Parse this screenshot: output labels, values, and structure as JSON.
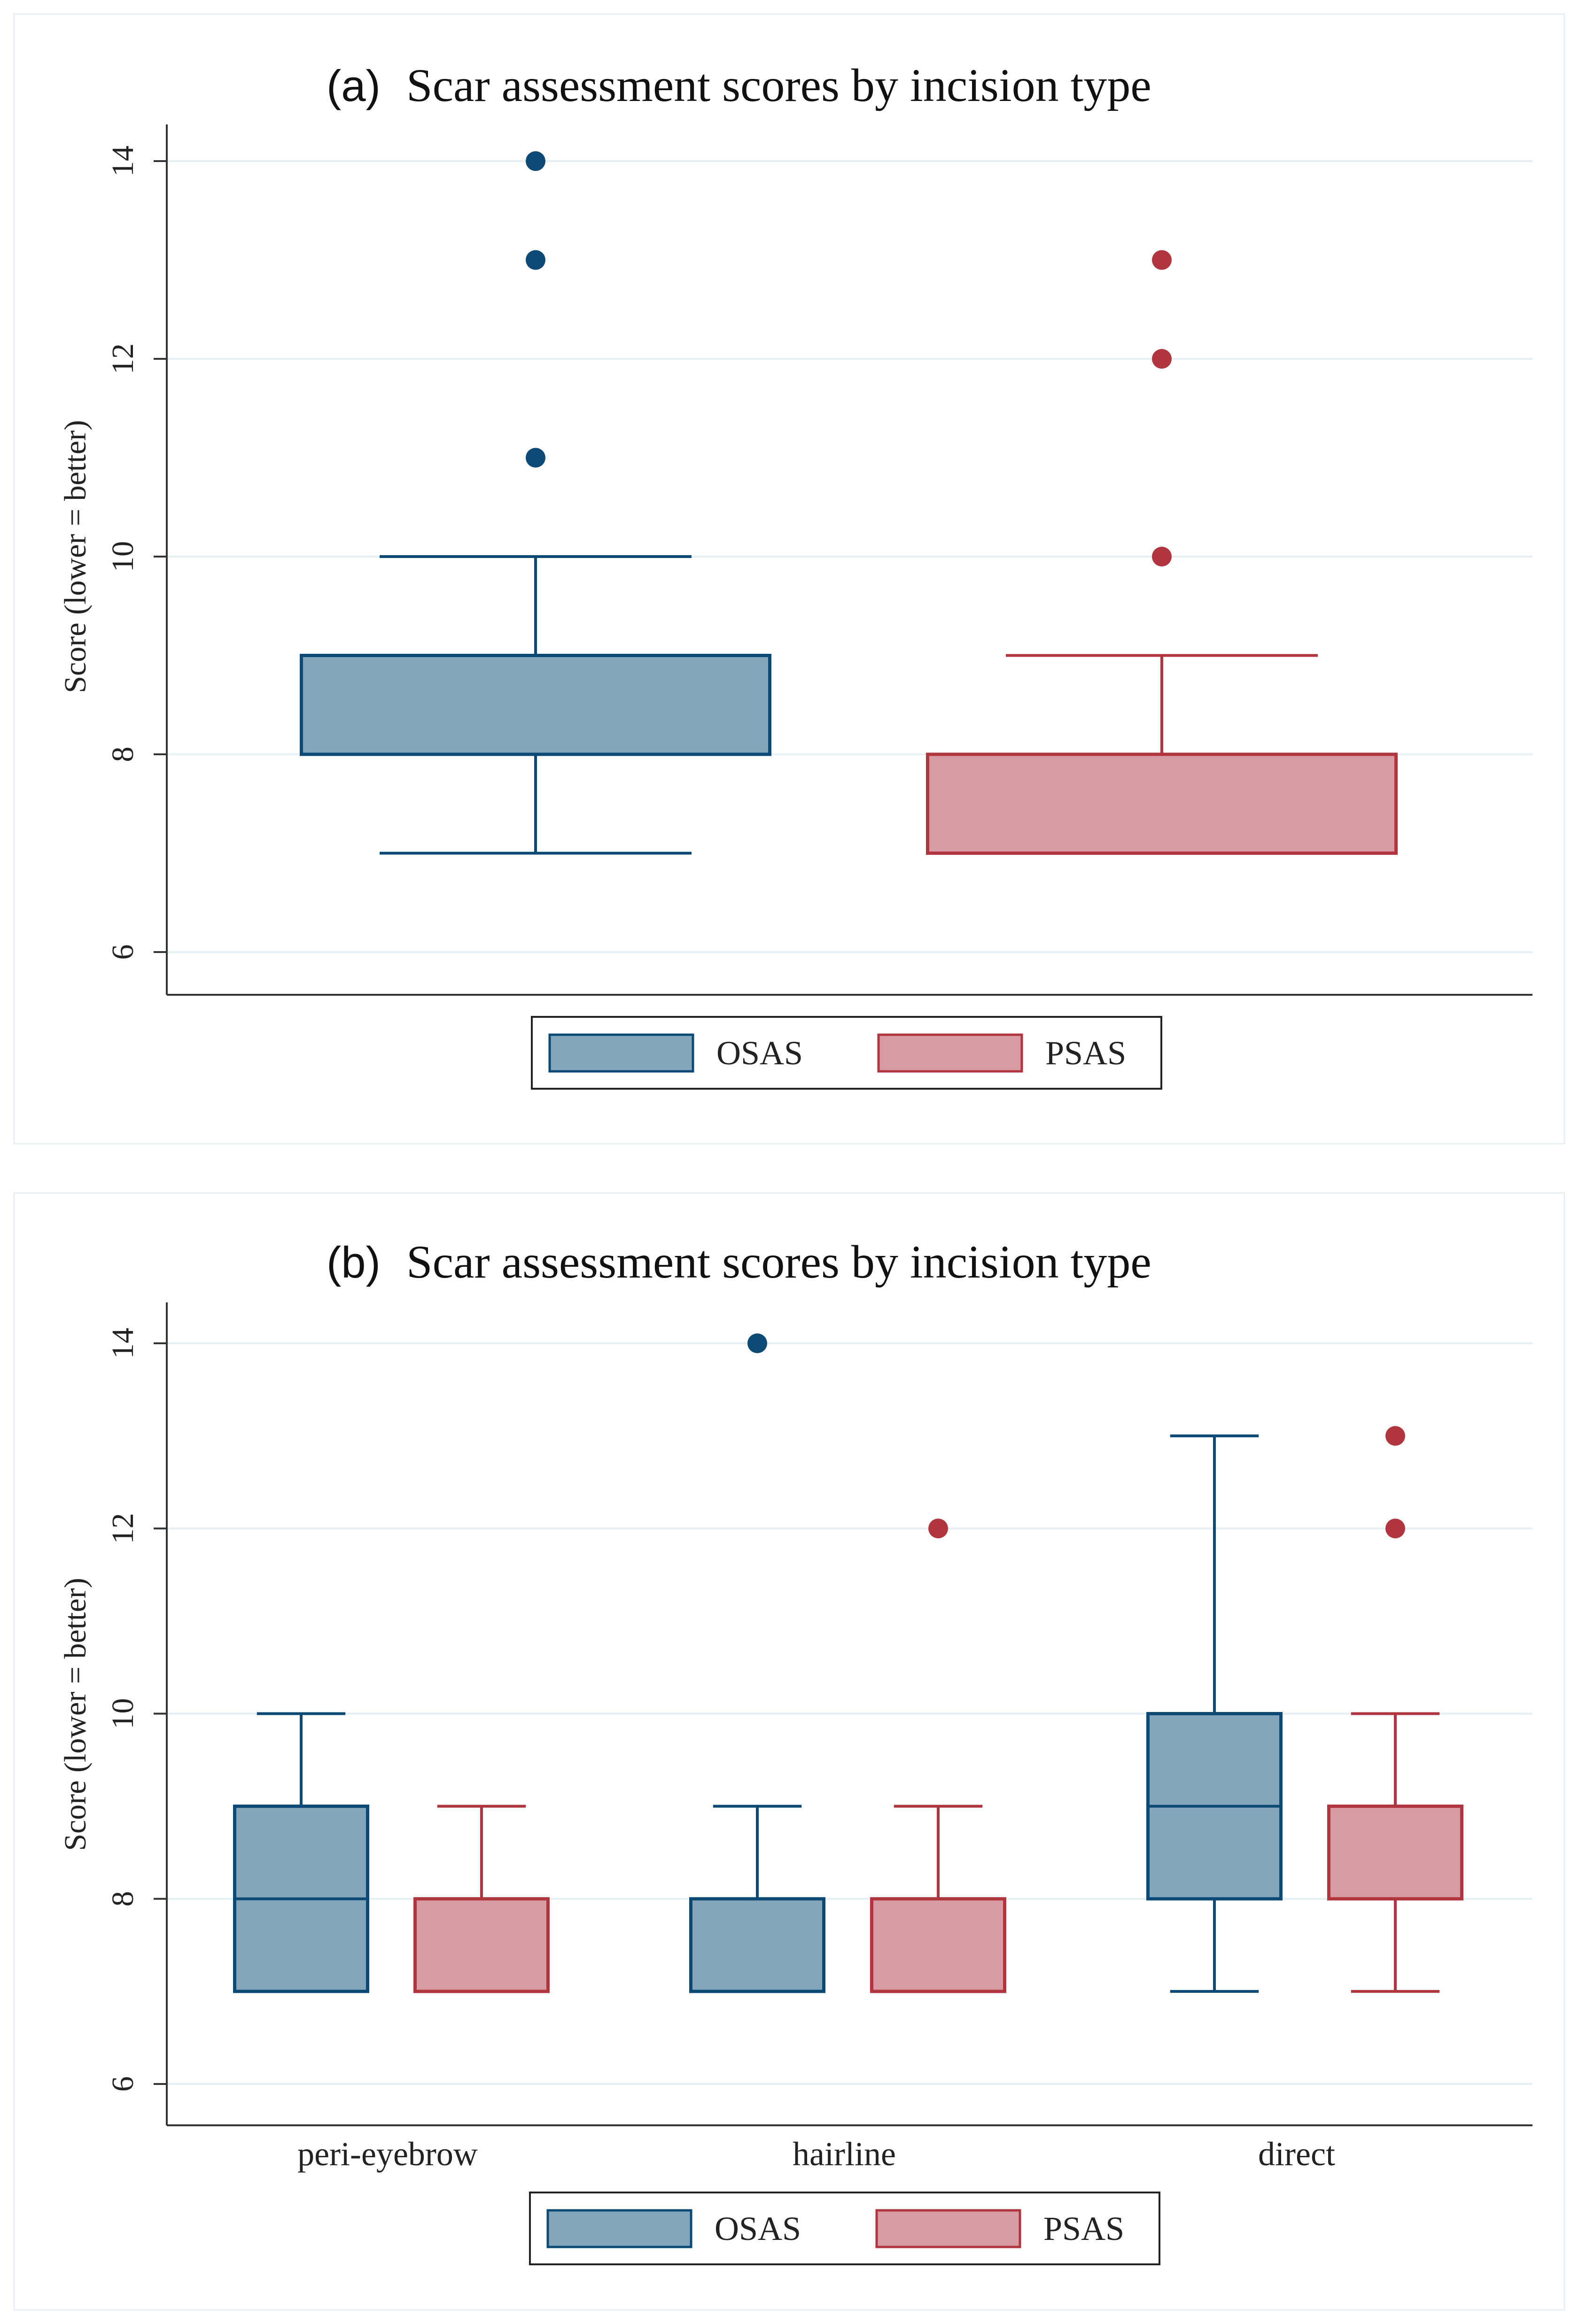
{
  "colors": {
    "osas_fill": "#84a6bb",
    "osas_stroke": "#0c4a75",
    "psas_fill": "#d89ba1",
    "psas_stroke": "#b0353f"
  },
  "chart_data": [
    {
      "type": "box",
      "panel_tag": "(a)",
      "title": "Scar assessment scores by incision type",
      "ylabel": "Score (lower = better)",
      "ylim": [
        6,
        14
      ],
      "yticks": [
        6,
        8,
        10,
        12,
        14
      ],
      "grid": true,
      "legend": {
        "position": "bottom",
        "entries": [
          "OSAS",
          "PSAS"
        ]
      },
      "categories": [
        ""
      ],
      "series": [
        {
          "name": "OSAS",
          "color_key": "osas",
          "boxes": [
            {
              "whisker_low": 7,
              "q1": 8,
              "median": 8,
              "q3": 9,
              "whisker_high": 10,
              "outliers": [
                11,
                13,
                14
              ]
            }
          ]
        },
        {
          "name": "PSAS",
          "color_key": "psas",
          "boxes": [
            {
              "whisker_low": 7,
              "q1": 7,
              "median": 8,
              "q3": 8,
              "whisker_high": 9,
              "outliers": [
                10,
                12,
                13
              ]
            }
          ]
        }
      ]
    },
    {
      "type": "box",
      "panel_tag": "(b)",
      "title": "Scar assessment scores by incision type",
      "ylabel": "Score (lower = better)",
      "ylim": [
        6,
        14
      ],
      "yticks": [
        6,
        8,
        10,
        12,
        14
      ],
      "grid": true,
      "legend": {
        "position": "bottom",
        "entries": [
          "OSAS",
          "PSAS"
        ]
      },
      "categories": [
        "peri-eyebrow",
        "hairline",
        "direct"
      ],
      "series": [
        {
          "name": "OSAS",
          "color_key": "osas",
          "boxes": [
            {
              "whisker_low": 7,
              "q1": 7,
              "median": 8,
              "q3": 9,
              "whisker_high": 10,
              "outliers": []
            },
            {
              "whisker_low": 7,
              "q1": 7,
              "median": 8,
              "q3": 8,
              "whisker_high": 9,
              "outliers": [
                14
              ]
            },
            {
              "whisker_low": 7,
              "q1": 8,
              "median": 9,
              "q3": 10,
              "whisker_high": 13,
              "outliers": []
            }
          ]
        },
        {
          "name": "PSAS",
          "color_key": "psas",
          "boxes": [
            {
              "whisker_low": 7,
              "q1": 7,
              "median": 8,
              "q3": 8,
              "whisker_high": 9,
              "outliers": []
            },
            {
              "whisker_low": 7,
              "q1": 7,
              "median": 8,
              "q3": 8,
              "whisker_high": 9,
              "outliers": [
                12
              ]
            },
            {
              "whisker_low": 7,
              "q1": 8,
              "median": 9,
              "q3": 9,
              "whisker_high": 10,
              "outliers": [
                12,
                13
              ]
            }
          ]
        }
      ]
    }
  ]
}
